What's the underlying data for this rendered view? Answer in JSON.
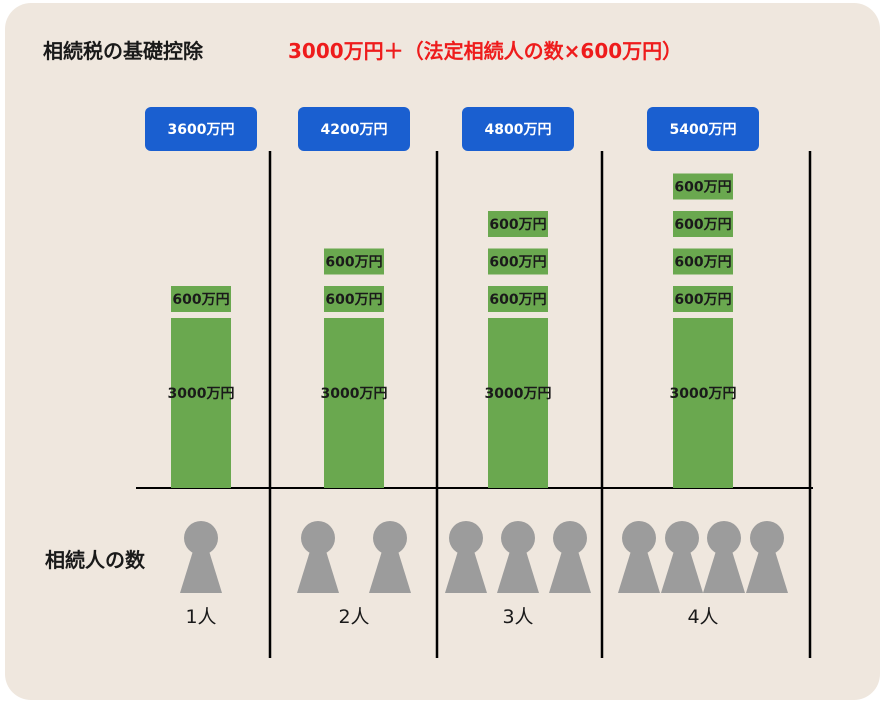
{
  "header": {
    "title": "相続税の基礎控除",
    "formula": "3000万円＋（法定相続人の数×600万円）"
  },
  "heirs_label": "相続人の数",
  "colors": {
    "background": "#efe7de",
    "bar": "#6aa84f",
    "total_box": "#1a5fd0",
    "person": "#9c9c9c",
    "formula": "#ee1c1c"
  },
  "chart_data": {
    "type": "bar",
    "stacked": true,
    "categories": [
      "1人",
      "2人",
      "3人",
      "4人"
    ],
    "heirs": [
      1,
      2,
      3,
      4
    ],
    "base_value": 3000,
    "base_label": "3000万円",
    "increment_value": 600,
    "increment_label": "600万円",
    "totals": [
      3600,
      4200,
      4800,
      5400
    ],
    "total_labels": [
      "3600万円",
      "4200万円",
      "4800万円",
      "5400万円"
    ],
    "unit": "万円",
    "grid": false,
    "legend": "none"
  }
}
